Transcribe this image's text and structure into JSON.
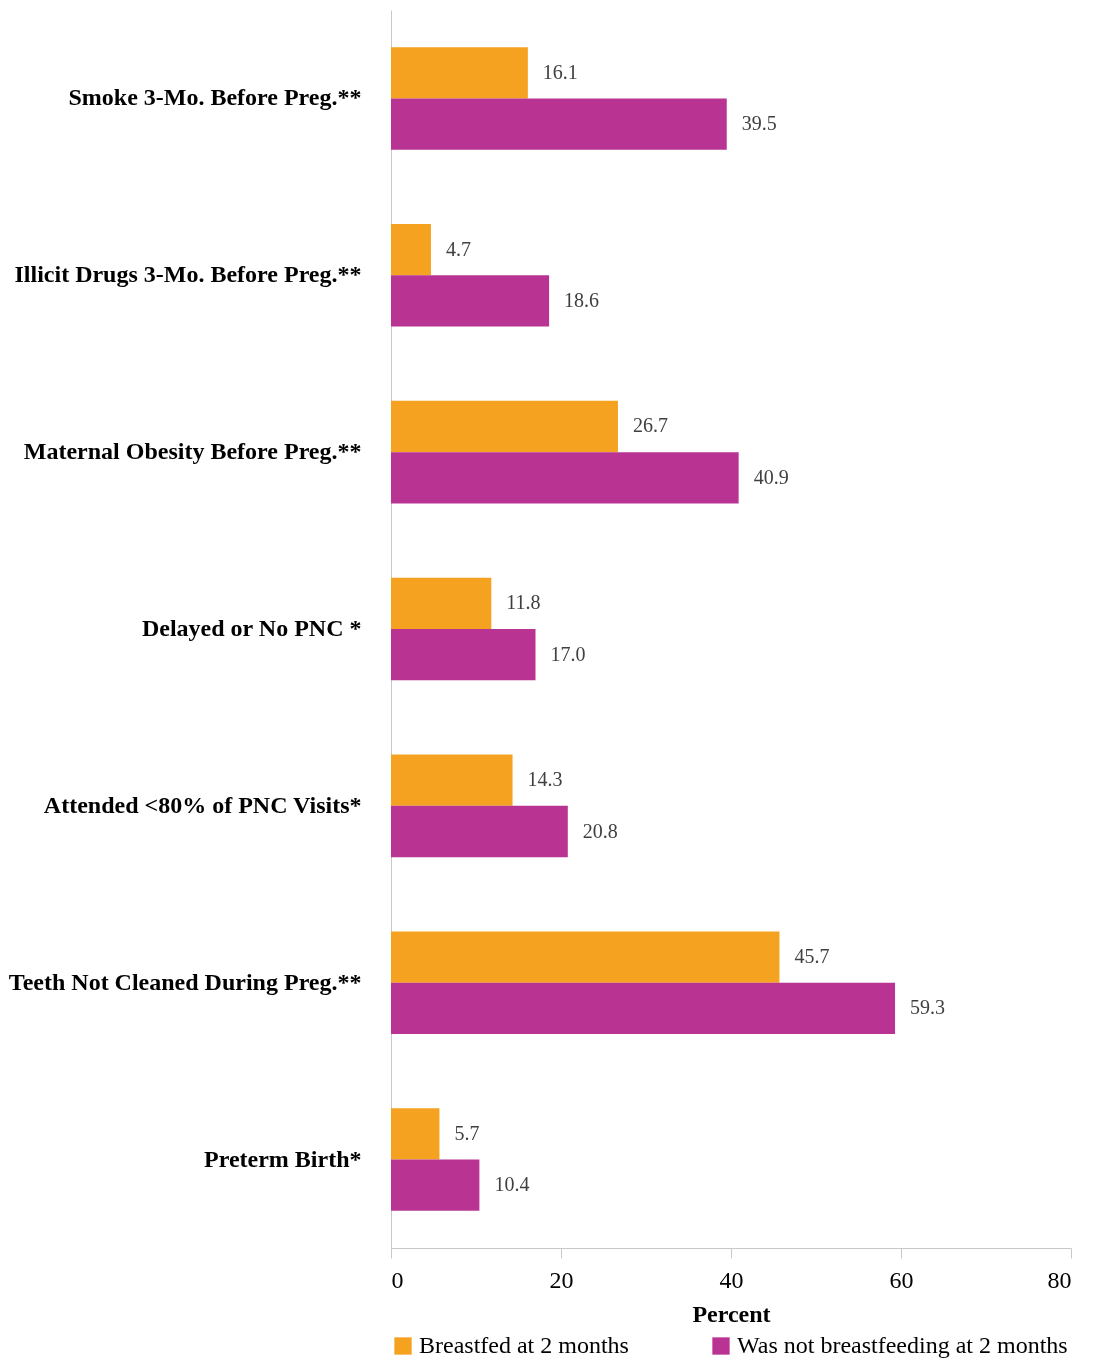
{
  "chart_data": {
    "type": "bar",
    "orientation": "horizontal",
    "categories": [
      "Smoke 3-Mo. Before Preg.**",
      "Illicit Drugs 3-Mo. Before Preg.**",
      "Maternal Obesity Before Preg.**",
      "Delayed or No PNC *",
      "Attended <80% of PNC Visits*",
      "Teeth Not Cleaned During Preg.**",
      "Preterm Birth*"
    ],
    "series": [
      {
        "name": "Breastfed at 2 months",
        "color": "#f4a21f",
        "values": [
          16.1,
          4.7,
          26.7,
          11.8,
          14.3,
          45.7,
          5.7
        ],
        "value_labels": [
          "16.1",
          "4.7",
          "26.7",
          "11.8",
          "14.3",
          "45.7",
          "5.7"
        ]
      },
      {
        "name": "Was not breastfeeding at 2 months",
        "color": "#b93393",
        "values": [
          39.5,
          18.6,
          40.9,
          17.0,
          20.8,
          59.3,
          10.4
        ],
        "value_labels": [
          "39.5",
          "18.6",
          "40.9",
          "17.0",
          "20.8",
          "59.3",
          "10.4"
        ]
      }
    ],
    "xlabel": "Percent",
    "xlim": [
      0,
      80
    ],
    "xticks": [
      0,
      20,
      40,
      60,
      80
    ],
    "grid": false,
    "legend": "bottom"
  }
}
